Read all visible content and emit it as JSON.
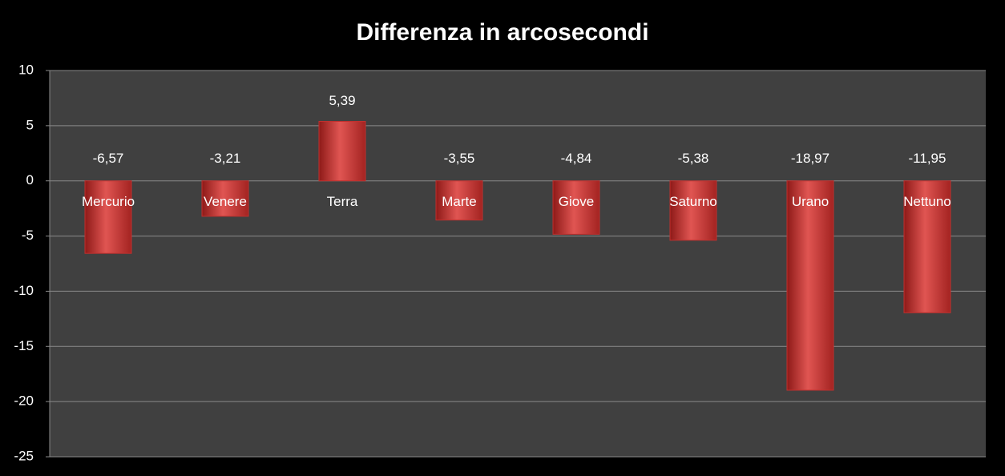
{
  "chart_data": {
    "type": "bar",
    "title": "Differenza in arcosecondi",
    "categories": [
      "Mercurio",
      "Venere",
      "Terra",
      "Marte",
      "Giove",
      "Saturno",
      "Urano",
      "Nettuno"
    ],
    "values": [
      -6.57,
      -3.21,
      5.39,
      -3.55,
      -4.84,
      -5.38,
      -18.97,
      -11.95
    ],
    "value_labels": [
      "-6,57",
      "-3,21",
      "5,39",
      "-3,55",
      "-4,84",
      "-5,38",
      "-18,97",
      "-11,95"
    ],
    "color": "#c0302e",
    "ylim": [
      -25,
      10
    ],
    "yticks": [
      -25,
      -20,
      -15,
      -10,
      -5,
      0,
      5,
      10
    ],
    "grid": true
  }
}
